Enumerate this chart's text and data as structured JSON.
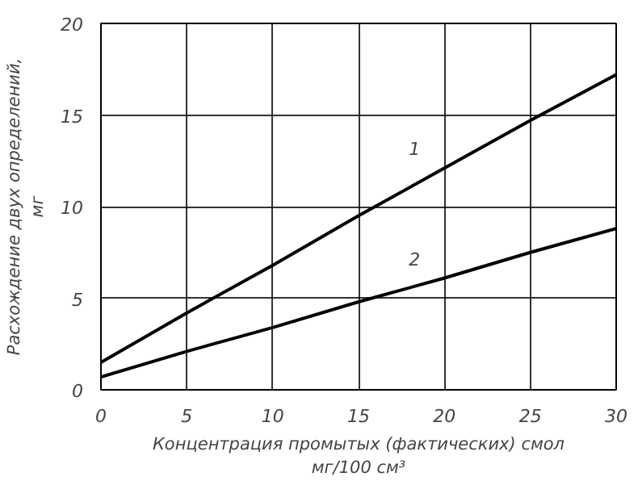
{
  "chart_data": {
    "type": "line",
    "xlabel": "Концентрация промытых (фактических) смол\nмг/100 см³",
    "ylabel": "Расхождение двух определений,\nмг",
    "x": [
      0,
      5,
      10,
      15,
      20,
      25,
      30
    ],
    "series": [
      {
        "name": "1",
        "color": "#000000",
        "values": [
          1.5,
          4.2,
          6.8,
          9.5,
          12.1,
          14.7,
          17.2
        ]
      },
      {
        "name": "2",
        "color": "#000000",
        "values": [
          0.7,
          2.1,
          3.4,
          4.8,
          6.1,
          7.5,
          8.8
        ]
      }
    ],
    "xlim": [
      0,
      30
    ],
    "ylim": [
      0,
      20
    ],
    "xticks": [
      0,
      5,
      10,
      15,
      20,
      25,
      30
    ],
    "yticks": [
      0,
      5,
      10,
      15,
      20
    ],
    "grid": true,
    "marker": "none",
    "line_style": "solid"
  }
}
